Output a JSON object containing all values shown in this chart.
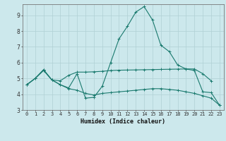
{
  "xlabel": "Humidex (Indice chaleur)",
  "background_color": "#cce8ec",
  "grid_color": "#b0d0d4",
  "line_color": "#1a7a6e",
  "xlim": [
    -0.5,
    23.5
  ],
  "ylim": [
    3,
    9.7
  ],
  "yticks": [
    3,
    4,
    5,
    6,
    7,
    8,
    9
  ],
  "xticks": [
    0,
    1,
    2,
    3,
    4,
    5,
    6,
    7,
    8,
    9,
    10,
    11,
    12,
    13,
    14,
    15,
    16,
    17,
    18,
    19,
    20,
    21,
    22,
    23
  ],
  "line1_x": [
    0,
    1,
    2,
    3,
    4,
    5,
    6,
    7,
    8,
    9,
    10,
    11,
    12,
    13,
    14,
    15,
    16,
    17,
    18,
    19,
    20,
    21,
    22,
    23
  ],
  "line1_y": [
    4.6,
    5.0,
    5.5,
    4.9,
    4.6,
    4.4,
    5.3,
    3.75,
    3.8,
    4.5,
    6.0,
    7.5,
    8.3,
    9.2,
    9.55,
    8.7,
    7.1,
    6.7,
    5.85,
    5.6,
    5.5,
    4.15,
    4.1,
    3.3
  ],
  "line2_x": [
    0,
    1,
    2,
    3,
    4,
    5,
    6,
    7,
    8,
    9,
    10,
    11,
    12,
    13,
    14,
    15,
    16,
    17,
    18,
    19,
    20,
    21,
    22
  ],
  "line2_y": [
    4.6,
    5.0,
    5.55,
    4.9,
    4.85,
    5.2,
    5.4,
    5.4,
    5.42,
    5.45,
    5.5,
    5.52,
    5.53,
    5.54,
    5.55,
    5.56,
    5.57,
    5.58,
    5.59,
    5.6,
    5.6,
    5.3,
    4.85
  ],
  "line3_x": [
    0,
    1,
    2,
    3,
    4,
    5,
    6,
    7,
    8,
    9,
    10,
    11,
    12,
    13,
    14,
    15,
    16,
    17,
    18,
    19,
    20,
    21,
    22,
    23
  ],
  "line3_y": [
    4.6,
    5.0,
    5.55,
    4.9,
    4.6,
    4.35,
    4.25,
    4.05,
    3.95,
    4.05,
    4.1,
    4.15,
    4.2,
    4.25,
    4.3,
    4.35,
    4.35,
    4.3,
    4.25,
    4.15,
    4.05,
    3.9,
    3.75,
    3.3
  ],
  "tick_fontsize": 5.0,
  "xlabel_fontsize": 6.0
}
